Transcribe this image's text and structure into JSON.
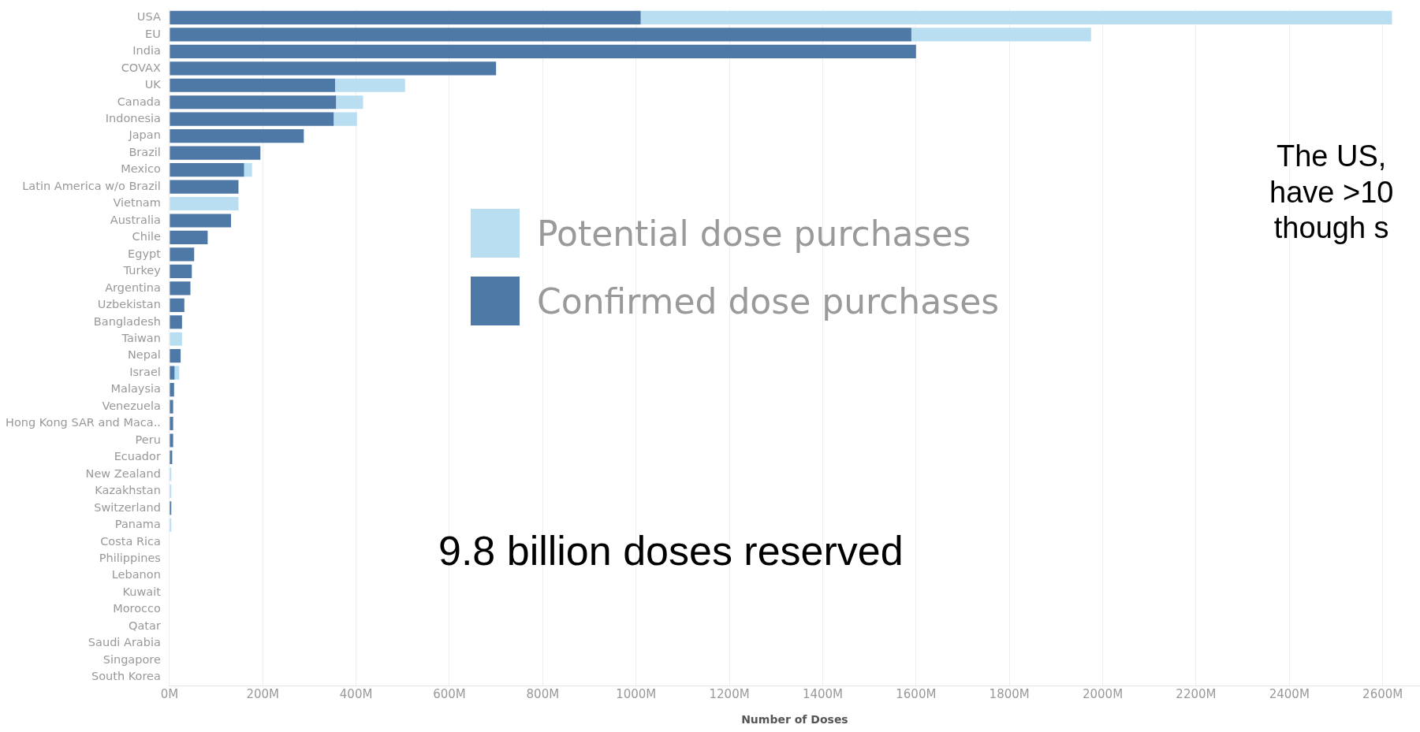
{
  "chart_data": {
    "type": "bar",
    "orientation": "horizontal",
    "stacked": true,
    "xlabel": "Number of Doses",
    "categories": [
      "USA",
      "EU",
      "India",
      "COVAX",
      "UK",
      "Canada",
      "Indonesia",
      "Japan",
      "Brazil",
      "Mexico",
      "Latin America w/o Brazil",
      "Vietnam",
      "Australia",
      "Chile",
      "Egypt",
      "Turkey",
      "Argentina",
      "Uzbekistan",
      "Bangladesh",
      "Taiwan",
      "Nepal",
      "Israel",
      "Malaysia",
      "Venezuela",
      "Hong Kong SAR and Maca..",
      "Peru",
      "Ecuador",
      "New Zealand",
      "Kazakhstan",
      "Switzerland",
      "Panama",
      "Costa Rica",
      "Philippines",
      "Lebanon",
      "Kuwait",
      "Morocco",
      "Qatar",
      "Saudi Arabia",
      "Singapore",
      "South Korea"
    ],
    "series": [
      {
        "name": "Confirmed dose purchases",
        "color": "#4e79a7",
        "values": [
          1010,
          1590,
          1600,
          700,
          355,
          357,
          352,
          288,
          195,
          160,
          148,
          0,
          132,
          82,
          53,
          48,
          45,
          32,
          27,
          0,
          24,
          11,
          10,
          8,
          8,
          8,
          6,
          0,
          0,
          4,
          0,
          0,
          0,
          0,
          0,
          0,
          0,
          0,
          0,
          0
        ]
      },
      {
        "name": "Potential dose purchases",
        "color": "#b9ddf1",
        "values": [
          1610,
          385,
          0,
          0,
          150,
          58,
          50,
          0,
          0,
          17,
          0,
          148,
          0,
          0,
          0,
          0,
          0,
          0,
          0,
          27,
          0,
          10,
          0,
          0,
          0,
          0,
          0,
          4,
          4,
          0,
          4,
          0,
          0,
          0,
          0,
          0,
          0,
          0,
          0,
          0
        ]
      }
    ],
    "xlim": [
      0,
      2680
    ],
    "xticks": [
      {
        "value": 0,
        "label": "0M"
      },
      {
        "value": 200,
        "label": "200M"
      },
      {
        "value": 400,
        "label": "400M"
      },
      {
        "value": 600,
        "label": "600M"
      },
      {
        "value": 800,
        "label": "800M"
      },
      {
        "value": 1000,
        "label": "1000M"
      },
      {
        "value": 1200,
        "label": "1200M"
      },
      {
        "value": 1400,
        "label": "1400M"
      },
      {
        "value": 1600,
        "label": "1600M"
      },
      {
        "value": 1800,
        "label": "1800M"
      },
      {
        "value": 2000,
        "label": "2000M"
      },
      {
        "value": 2200,
        "label": "2200M"
      },
      {
        "value": 2400,
        "label": "2400M"
      },
      {
        "value": 2600,
        "label": "2600M"
      }
    ],
    "grid": "x",
    "legend": "top",
    "annotations": [
      "9.8 billion doses reserved",
      "The US,\nhave >10\nthough s"
    ]
  }
}
